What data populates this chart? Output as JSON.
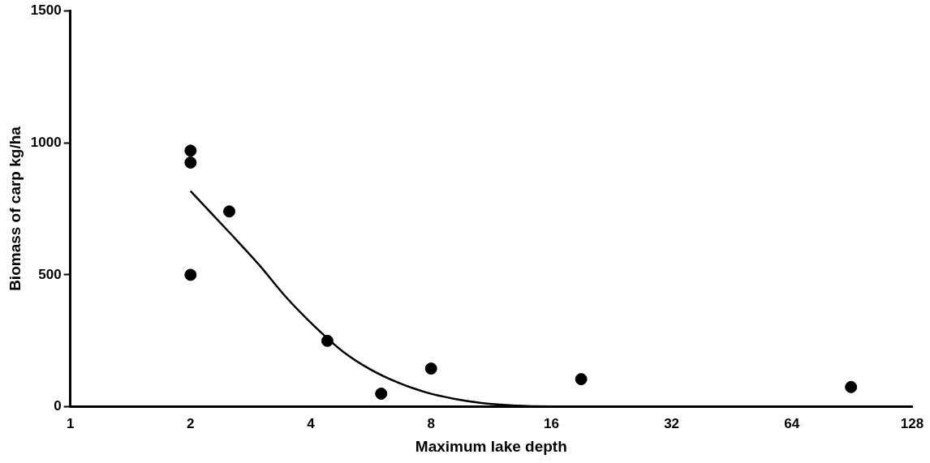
{
  "chart_data": {
    "type": "scatter",
    "xlabel": "Maximum lake depth",
    "ylabel": "Biomass of carp kg/ha",
    "log": "x",
    "xlim": [
      1,
      128
    ],
    "xticks": [
      1,
      2,
      4,
      8,
      16,
      32,
      64,
      128
    ],
    "ylim": [
      0,
      1500
    ],
    "yticks": [
      0,
      500,
      1000,
      1500
    ],
    "grid": false,
    "legend": false,
    "marker": "circle",
    "series": [
      {
        "color": "#000000",
        "x": [
          2,
          2,
          2,
          2.5,
          4.4,
          6,
          8,
          19,
          90
        ],
        "values": [
          970,
          925,
          500,
          740,
          250,
          50,
          145,
          105,
          75
        ]
      },
      {
        "type": "line",
        "color": "#000000",
        "marker": "none",
        "line_style": "solid",
        "x": [
          2,
          2.5,
          2.96,
          3.48,
          4.1,
          4.81,
          5.64,
          6.62,
          7.77,
          9.11,
          10.69,
          13,
          16,
          90
        ],
        "values": [
          817,
          661,
          540,
          413,
          303,
          210,
          142,
          92,
          55,
          31,
          15,
          5,
          2,
          0
        ]
      }
    ]
  }
}
